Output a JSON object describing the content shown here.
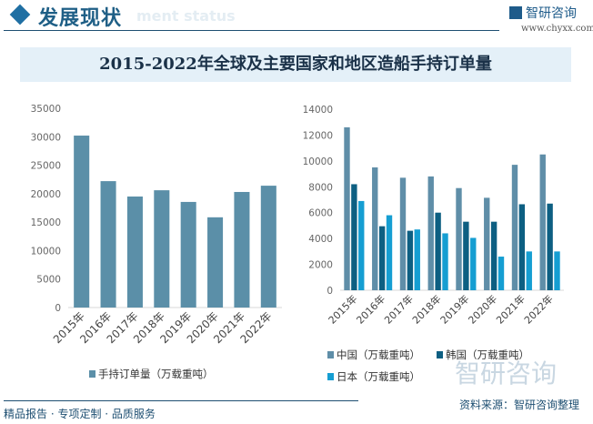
{
  "header": {
    "title": "发展现状",
    "ghost_text": "ment status",
    "logo_text": "智研咨询",
    "url": "www.chyxx.com"
  },
  "banner_title": "2015-2022年全球及主要国家和地区造船手持订单量",
  "footer": {
    "left": "精品报告 · 专项定制 · 品质服务",
    "source": "资料来源：智研咨询整理",
    "watermark": "智研咨询"
  },
  "colors": {
    "global": "#5b8fa8",
    "china": "#5f8ea8",
    "korea": "#0d5f82",
    "japan": "#159ed2",
    "accent": "#1e4f72"
  },
  "chart_data": [
    {
      "type": "bar",
      "categories": [
        "2015年",
        "2016年",
        "2017年",
        "2018年",
        "2019年",
        "2020年",
        "2021年",
        "2022年"
      ],
      "series": [
        {
          "name": "手持订单量（万载重吨）",
          "values": [
            30200,
            22200,
            19500,
            20600,
            18550,
            15850,
            20300,
            21400
          ]
        }
      ],
      "ylim": [
        0,
        35000
      ],
      "yticks": [
        0,
        5000,
        10000,
        15000,
        20000,
        25000,
        30000,
        35000
      ],
      "grid": false,
      "legend": "bottom"
    },
    {
      "type": "bar",
      "categories": [
        "2015年",
        "2016年",
        "2017年",
        "2018年",
        "2019年",
        "2020年",
        "2021年",
        "2022年"
      ],
      "series": [
        {
          "name": "中国（万载重吨）",
          "values": [
            12600,
            9500,
            8700,
            8800,
            7900,
            7150,
            9700,
            10500
          ]
        },
        {
          "name": "韩国（万载重吨）",
          "values": [
            8200,
            4950,
            4600,
            6000,
            5300,
            5300,
            6650,
            6700
          ]
        },
        {
          "name": "日本（万载重吨）",
          "values": [
            6900,
            5800,
            4700,
            4400,
            4050,
            2600,
            3000,
            3000
          ]
        }
      ],
      "ylim": [
        0,
        14000
      ],
      "yticks": [
        0,
        2000,
        4000,
        6000,
        8000,
        10000,
        12000,
        14000
      ],
      "grid": false,
      "legend": "bottom"
    }
  ]
}
